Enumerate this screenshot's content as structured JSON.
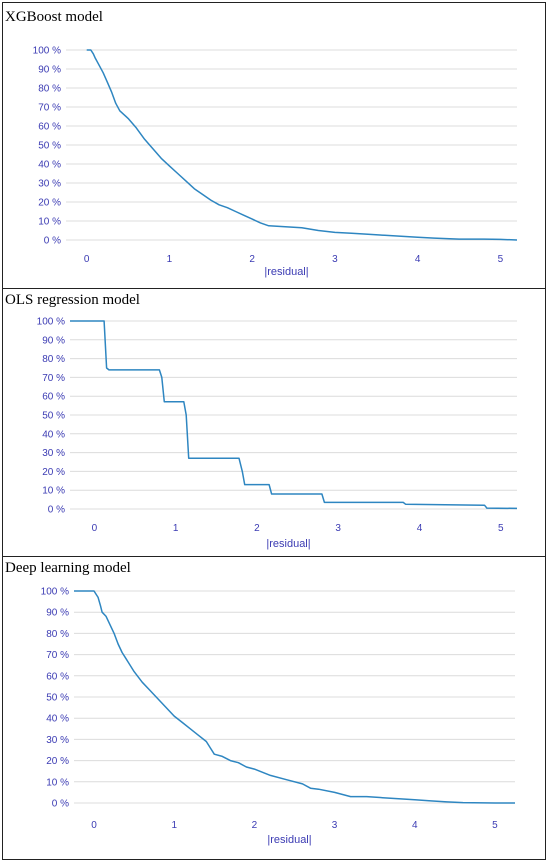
{
  "colors": {
    "line": "#2e86c1",
    "grid": "#dcdcdc",
    "tick_text": "#3b3bb3",
    "border": "#222222"
  },
  "chart_data": [
    {
      "type": "line",
      "title": "XGBoost model",
      "xlabel": "|residual|",
      "ylabel": "",
      "xlim": [
        -0.25,
        5.2
      ],
      "ylim": [
        0,
        100
      ],
      "x_ticks": [
        "0",
        "1",
        "2",
        "3",
        "4",
        "5"
      ],
      "y_ticks": [
        "0 %",
        "10 %",
        "20 %",
        "30 %",
        "40 %",
        "50 %",
        "60 %",
        "70 %",
        "80 %",
        "90 %",
        "100 %"
      ],
      "grid": true,
      "series": [
        {
          "step": false,
          "x": [
            0,
            0.05,
            0.08,
            0.1,
            0.15,
            0.2,
            0.25,
            0.3,
            0.35,
            0.4,
            0.45,
            0.5,
            0.6,
            0.7,
            0.8,
            0.9,
            1.0,
            1.1,
            1.2,
            1.3,
            1.4,
            1.5,
            1.6,
            1.7,
            1.8,
            1.9,
            2.0,
            2.1,
            2.2,
            2.4,
            2.6,
            2.8,
            3.0,
            3.2,
            3.4,
            3.6,
            3.8,
            4.0,
            4.2,
            4.5,
            4.8,
            5.0,
            5.2
          ],
          "y": [
            100,
            100,
            98,
            96,
            92,
            88,
            83,
            78,
            72,
            68,
            66,
            64,
            59,
            53,
            48,
            43,
            39,
            35,
            31,
            27,
            24,
            21,
            18.5,
            17,
            15,
            13,
            11,
            9,
            7.5,
            7,
            6.5,
            5,
            4,
            3.5,
            3,
            2.5,
            2,
            1.5,
            1,
            0.5,
            0.5,
            0.3,
            0
          ]
        }
      ]
    },
    {
      "type": "line",
      "title": "OLS regression model",
      "xlabel": "|residual|",
      "ylabel": "",
      "xlim": [
        -0.3,
        5.2
      ],
      "ylim": [
        0,
        100
      ],
      "x_ticks": [
        "0",
        "1",
        "2",
        "3",
        "4",
        "5"
      ],
      "y_ticks": [
        "0 %",
        "10 %",
        "20 %",
        "30 %",
        "40 %",
        "50 %",
        "60 %",
        "70 %",
        "80 %",
        "90 %",
        "100 %"
      ],
      "grid": true,
      "series": [
        {
          "step": true,
          "x": [
            -0.3,
            0.12,
            0.15,
            0.18,
            0.8,
            0.83,
            0.86,
            1.1,
            1.13,
            1.16,
            1.78,
            1.82,
            1.85,
            2.15,
            2.18,
            2.8,
            2.83,
            3.8,
            3.83,
            4.8,
            4.83,
            5.2
          ],
          "y": [
            100,
            100,
            75,
            74,
            74,
            70,
            57,
            57,
            50,
            27,
            27,
            20,
            13,
            13,
            8,
            8,
            3.5,
            3.5,
            2.5,
            2,
            0.5,
            0.3
          ]
        }
      ]
    },
    {
      "type": "line",
      "title": "Deep learning model",
      "xlabel": "|residual|",
      "ylabel": "",
      "xlim": [
        -0.25,
        5.25
      ],
      "ylim": [
        0,
        100
      ],
      "x_ticks": [
        "0",
        "1",
        "2",
        "3",
        "4",
        "5"
      ],
      "y_ticks": [
        "0 %",
        "10 %",
        "20 %",
        "30 %",
        "40 %",
        "50 %",
        "60 %",
        "70 %",
        "80 %",
        "90 %",
        "100 %"
      ],
      "grid": true,
      "series": [
        {
          "step": false,
          "x": [
            -0.25,
            0,
            0.05,
            0.08,
            0.1,
            0.15,
            0.2,
            0.25,
            0.3,
            0.35,
            0.4,
            0.5,
            0.6,
            0.7,
            0.8,
            0.9,
            1.0,
            1.1,
            1.2,
            1.3,
            1.4,
            1.45,
            1.5,
            1.6,
            1.7,
            1.8,
            1.9,
            2.0,
            2.2,
            2.4,
            2.6,
            2.7,
            2.8,
            3.0,
            3.2,
            3.4,
            3.6,
            3.8,
            4.0,
            4.2,
            4.4,
            4.6,
            5.0,
            5.25
          ],
          "y": [
            100,
            100,
            97,
            93,
            90,
            88,
            84,
            80,
            75,
            71,
            68,
            62,
            57,
            53,
            49,
            45,
            41,
            38,
            35,
            32,
            29,
            26,
            23,
            22,
            20,
            19,
            17,
            16,
            13,
            11,
            9,
            7,
            6.5,
            5,
            3,
            3,
            2.5,
            2,
            1.5,
            1,
            0.5,
            0.2,
            0,
            0
          ]
        }
      ]
    }
  ]
}
